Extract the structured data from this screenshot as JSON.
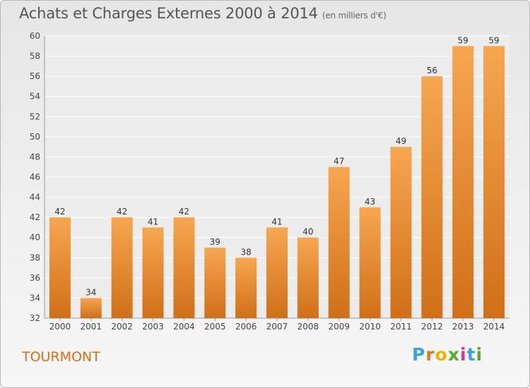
{
  "title": "Achats et Charges Externes 2000 à 2014",
  "subtitle": "(en milliers d'€)",
  "place": "TOURMONT",
  "logo": {
    "letters": [
      "P",
      "r",
      "o",
      "x",
      "i",
      "t",
      "i"
    ],
    "colors": [
      "#3aa3d8",
      "#e07820",
      "#e8b400",
      "#58a82c",
      "#d43a8c",
      "#3aa3d8",
      "#58a82c"
    ]
  },
  "colors": {
    "bar_top": "#f7a650",
    "bar_bottom": "#d06f18",
    "title": "#555555",
    "place": "#e06d10"
  },
  "chart_data": {
    "type": "bar",
    "categories": [
      "2000",
      "2001",
      "2002",
      "2003",
      "2004",
      "2005",
      "2006",
      "2007",
      "2008",
      "2009",
      "2010",
      "2011",
      "2012",
      "2013",
      "2014"
    ],
    "values": [
      42,
      34,
      42,
      41,
      42,
      39,
      38,
      41,
      40,
      47,
      43,
      49,
      56,
      59,
      59
    ],
    "title": "Achats et Charges Externes 2000 à 2014",
    "subtitle": "(en milliers d'€)",
    "ylim": [
      32,
      60
    ],
    "yticks": [
      32,
      34,
      36,
      38,
      40,
      42,
      44,
      46,
      48,
      50,
      52,
      54,
      56,
      58,
      60
    ],
    "grid": true,
    "legend": "none"
  }
}
